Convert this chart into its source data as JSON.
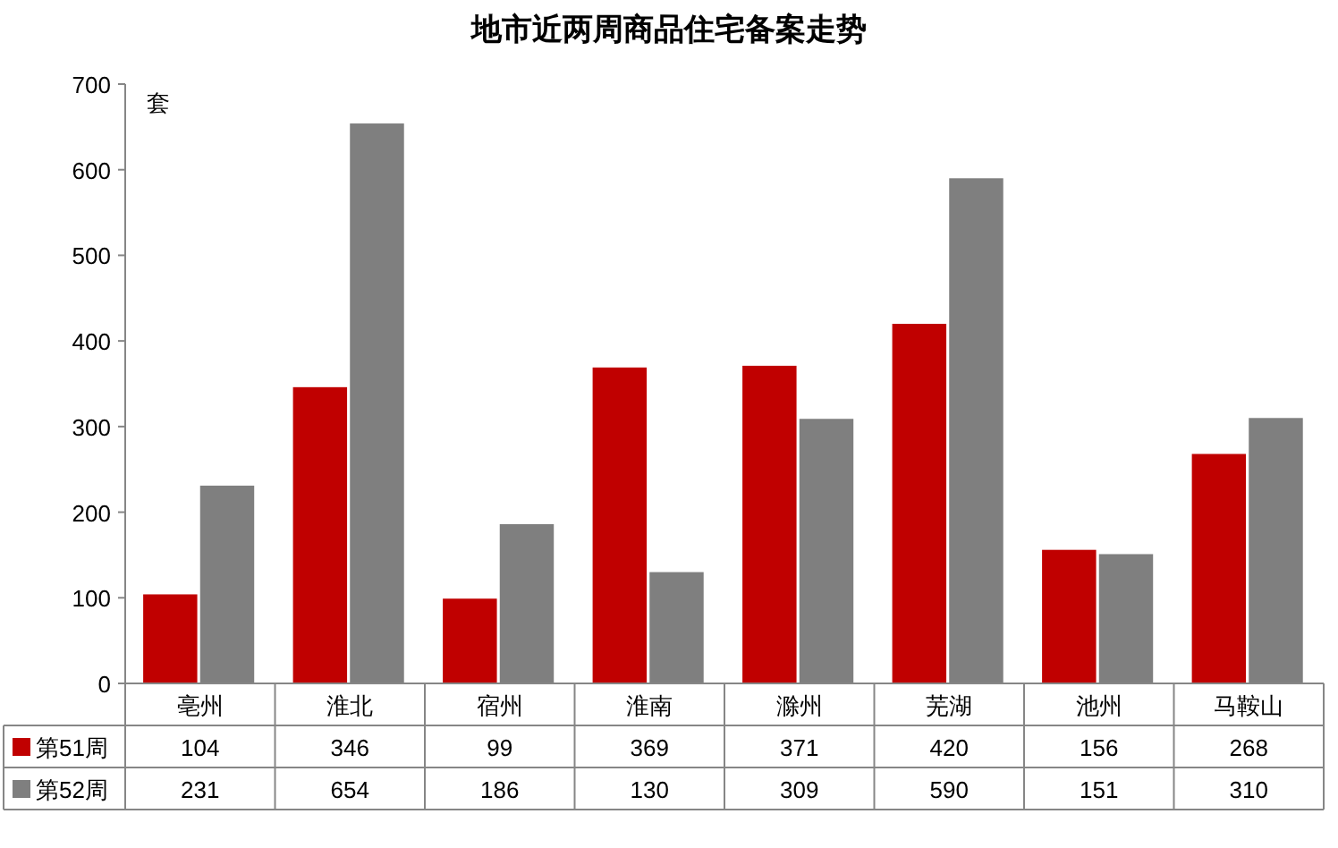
{
  "chart_data": {
    "type": "bar",
    "title": "地市近两周商品住宅备案走势",
    "ylabel": "套",
    "categories": [
      "亳州",
      "淮北",
      "宿州",
      "淮南",
      "滁州",
      "芜湖",
      "池州",
      "马鞍山"
    ],
    "series": [
      {
        "name": "第51周",
        "color": "#c00000",
        "values": [
          104,
          346,
          99,
          369,
          371,
          420,
          156,
          268
        ]
      },
      {
        "name": "第52周",
        "color": "#7f7f7f",
        "values": [
          231,
          654,
          186,
          130,
          309,
          590,
          151,
          310
        ]
      }
    ],
    "ylim": [
      0,
      700
    ],
    "yticks": [
      0,
      100,
      200,
      300,
      400,
      500,
      600,
      700
    ],
    "grid": false,
    "legend": "bottom",
    "data_labels": true
  }
}
